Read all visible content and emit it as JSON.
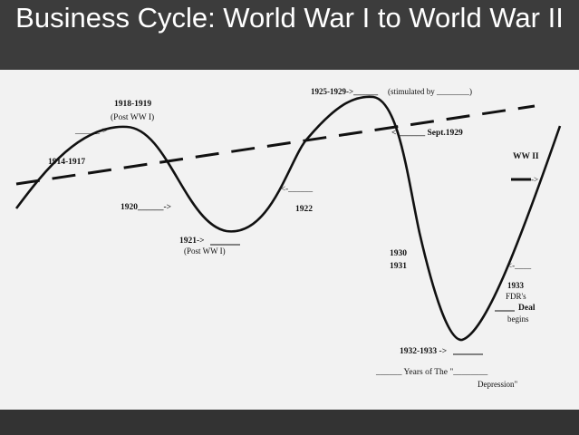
{
  "slide": {
    "title": "Business Cycle: World War I to World War II",
    "colors": {
      "header": "#3c3c3c",
      "paper": "#f2f2f2",
      "ink": "#111111"
    }
  },
  "diagram": {
    "label_1914": "1914-1917",
    "label_1918": "1918-1919",
    "label_post_ww1_a": "(Post WW I)",
    "label_arrow_top_left": "______->",
    "label_1920": "1920______->",
    "label_1921": "1921->",
    "label_post_ww1_b": "(Post WW I)",
    "label_1922_arrow": "<-______",
    "label_1922": "1922",
    "label_1925": "1925-1929->______",
    "label_stimulated": "(stimulated by ________)",
    "label_sept1929": "<-______ Sept.1929",
    "label_1930": "1930",
    "label_1931": "1931",
    "label_1932": "1932-1933 ->",
    "label_years_of_the": "______ Years of The \"________",
    "label_depression": "Depression\"",
    "label_ww2": "WW II",
    "label_ww2_arrow": "->",
    "label_1933_arrow": "<-____",
    "label_1933": "1933",
    "label_fdr": "FDR's",
    "label_deal": "Deal",
    "label_begins": "begins"
  }
}
